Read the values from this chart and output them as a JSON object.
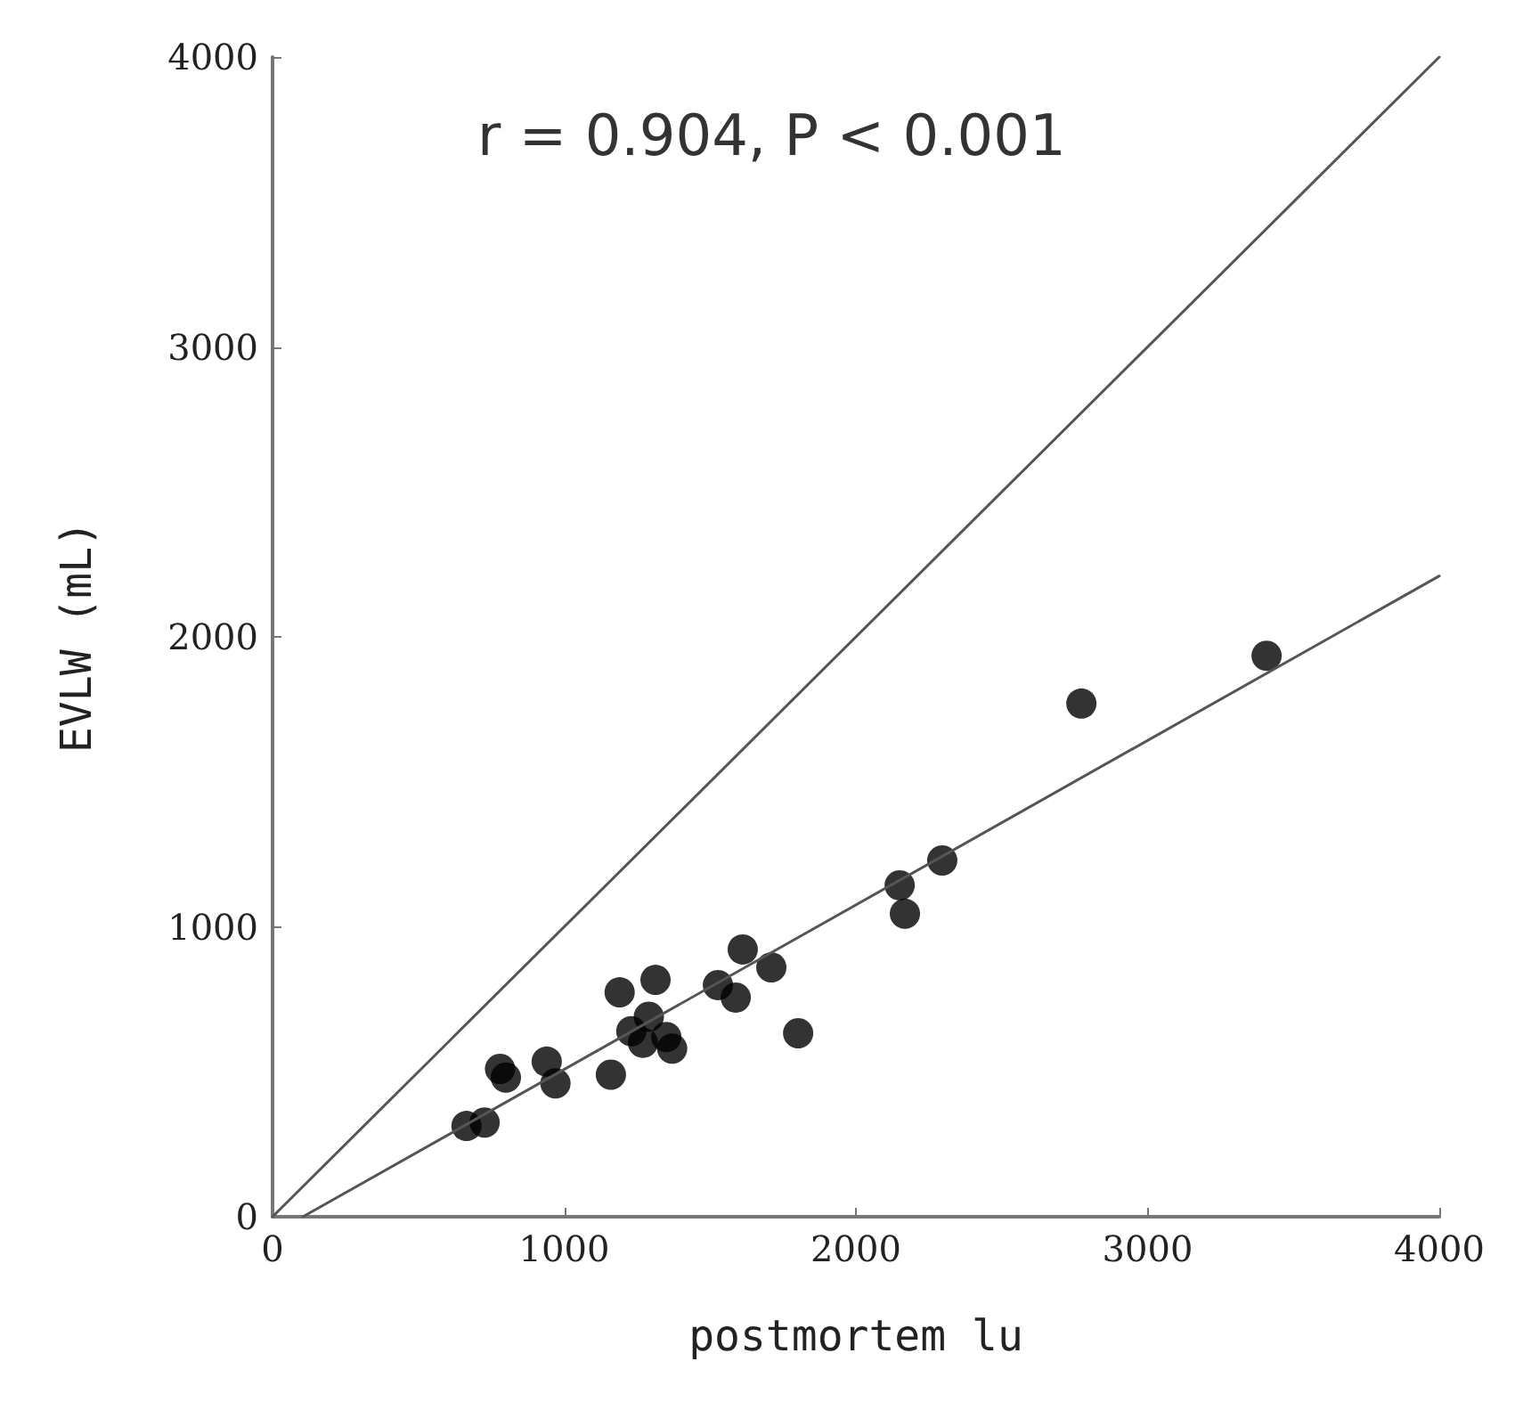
{
  "chart_data": {
    "type": "scatter",
    "xlabel": "postmortem lu",
    "ylabel": "EVLW (mL)",
    "annotations": [
      "r = 0.904, P < 0.001"
    ],
    "xlim": [
      0,
      4000
    ],
    "xticks": [
      0,
      1000,
      2000,
      3000,
      4000
    ],
    "ylim": [
      0,
      4000
    ],
    "yticks": [
      0,
      1000,
      2000,
      3000,
      4000
    ],
    "grid": false,
    "marker": "circle",
    "series": [
      {
        "type": "line",
        "color": "#555555",
        "x": [
          0,
          4000
        ],
        "values": [
          0,
          4000
        ],
        "marker": "none",
        "line_style": "solid"
      },
      {
        "type": "line",
        "color": "#555555",
        "x": [
          104,
          4000
        ],
        "values": [
          0,
          2210
        ],
        "marker": "none",
        "line_style": "solid"
      },
      {
        "color": "#000000",
        "x": [
          665,
          727,
          780,
          800,
          940,
          970,
          1160,
          1190,
          1230,
          1270,
          1290,
          1313,
          1350,
          1370,
          1527,
          1588,
          1612,
          1710,
          1802,
          2150,
          2168,
          2296,
          2773,
          3408
        ],
        "values": [
          313,
          325,
          510,
          480,
          535,
          460,
          490,
          774,
          640,
          600,
          690,
          817,
          620,
          580,
          799,
          756,
          922,
          860,
          633,
          1143,
          1045,
          1229,
          1770,
          1935
        ]
      }
    ]
  }
}
